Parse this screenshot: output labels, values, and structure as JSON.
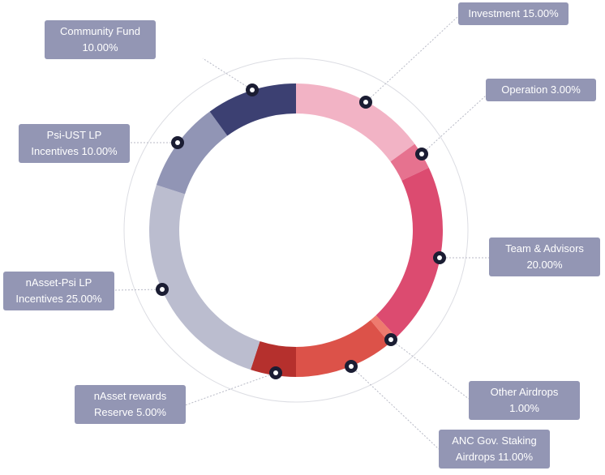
{
  "chart_data": {
    "type": "pie",
    "donut": true,
    "categories": [
      "Investment",
      "Operation",
      "Team & Advisors",
      "Other Airdrops",
      "ANC Gov. Staking Airdrops",
      "nAsset rewards Reserve",
      "nAsset-Psi LP Incentives",
      "Psi-UST LP Incentives",
      "Community Fund"
    ],
    "values": [
      15,
      3,
      20,
      1,
      11,
      5,
      25,
      10,
      10
    ],
    "colors": [
      "#f2b3c5",
      "#e6728f",
      "#dc4b70",
      "#ee7a6e",
      "#dc5249",
      "#b5302d",
      "#bbbdcf",
      "#9195b5",
      "#3c4072"
    ],
    "legend": "callouts",
    "labels": [
      {
        "line1": "Investment 15.00%",
        "line2": ""
      },
      {
        "line1": "Operation 3.00%",
        "line2": ""
      },
      {
        "line1": "Team & Advisors",
        "line2": "20.00%"
      },
      {
        "line1": "Other Airdrops",
        "line2": "1.00%"
      },
      {
        "line1": "ANC Gov. Staking",
        "line2": "Airdrops 11.00%"
      },
      {
        "line1": "nAsset rewards",
        "line2": "Reserve 5.00%"
      },
      {
        "line1": "nAsset-Psi LP",
        "line2": "Incentives 25.00%"
      },
      {
        "line1": "Psi-UST LP",
        "line2": "Incentives 10.00%"
      },
      {
        "line1": "Community Fund",
        "line2": "10.00%"
      }
    ]
  }
}
